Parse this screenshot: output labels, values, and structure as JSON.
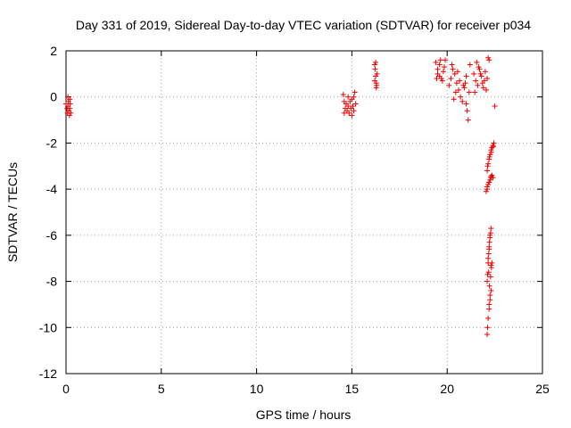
{
  "chart_data": {
    "type": "scatter",
    "title": "Day 331 of 2019, Sidereal Day-to-day VTEC variation (SDTVAR) for receiver p034",
    "xlabel": "GPS time / hours",
    "ylabel": "SDTVAR / TECUs",
    "xlim": [
      0,
      25
    ],
    "ylim": [
      -12,
      2
    ],
    "x_ticks": [
      0,
      5,
      10,
      15,
      20,
      25
    ],
    "y_ticks": [
      -12,
      -10,
      -8,
      -6,
      -4,
      -2,
      0,
      2
    ],
    "x_tick_labels": [
      "0",
      "5",
      "10",
      "15",
      "20",
      "25"
    ],
    "y_tick_labels": [
      "-12",
      "-10",
      "-8",
      "-6",
      "-4",
      "-2",
      "0",
      "2"
    ],
    "grid": true,
    "marker": "plus",
    "color": "#ee0000",
    "series": [
      {
        "x": [
          0.0,
          0.05,
          0.08,
          0.1,
          0.12,
          0.15,
          0.18,
          0.2,
          0.22,
          0.25,
          0.1,
          0.2,
          14.55,
          14.6,
          14.65,
          14.7,
          14.75,
          14.8,
          14.85,
          14.9,
          14.95,
          15.0,
          15.05,
          15.1,
          15.15,
          15.2,
          14.6,
          14.8,
          15.0,
          15.1,
          16.2,
          16.22,
          16.25,
          16.28,
          16.3,
          16.32,
          16.25,
          16.2,
          16.28,
          19.4,
          19.5,
          19.6,
          19.7,
          19.8,
          19.9,
          19.5,
          19.6,
          19.75,
          19.85,
          19.45,
          19.65,
          20.1,
          20.2,
          20.3,
          20.4,
          20.5,
          20.6,
          20.7,
          20.8,
          20.9,
          21.0,
          20.25,
          20.45,
          20.65,
          20.85,
          20.35,
          20.55,
          20.95,
          21.0,
          21.05,
          21.1,
          21.15,
          21.2,
          21.4,
          21.5,
          21.6,
          21.7,
          21.8,
          21.9,
          22.0,
          22.1,
          21.45,
          21.65,
          21.85,
          22.05,
          21.55,
          21.75,
          21.95,
          22.15,
          22.2,
          22.5,
          22.1,
          22.15,
          22.2,
          22.25,
          22.3,
          22.35,
          22.4,
          22.45,
          22.12,
          22.22,
          22.32,
          22.42,
          22.05,
          22.1,
          22.15,
          22.2,
          22.25,
          22.3,
          22.35,
          22.4,
          22.1,
          22.2,
          22.3,
          22.1,
          22.12,
          22.15,
          22.18,
          22.2,
          22.22,
          22.25,
          22.28,
          22.3,
          22.15,
          22.2,
          22.25,
          22.1,
          22.12,
          22.15,
          22.2
        ],
        "y": [
          -0.3,
          -0.5,
          -0.7,
          -0.4,
          -0.2,
          -0.6,
          -0.8,
          -0.5,
          -0.3,
          -0.7,
          0.0,
          -0.1,
          0.1,
          -0.2,
          -0.5,
          -0.3,
          -0.6,
          -0.4,
          -0.7,
          -0.2,
          -0.5,
          -0.1,
          -0.4,
          0.0,
          0.2,
          -0.3,
          -0.7,
          0.0,
          -0.8,
          -0.6,
          1.4,
          1.2,
          0.9,
          0.6,
          0.5,
          1.0,
          1.5,
          0.7,
          0.4,
          1.5,
          1.2,
          0.9,
          0.8,
          1.1,
          1.6,
          1.0,
          1.4,
          0.7,
          1.3,
          0.8,
          1.6,
          0.5,
          0.8,
          1.2,
          1.0,
          0.6,
          0.3,
          0.0,
          -0.2,
          0.4,
          0.9,
          1.4,
          0.2,
          0.7,
          0.5,
          -0.1,
          1.1,
          0.6,
          -0.3,
          -0.6,
          -1.0,
          0.2,
          1.4,
          1.0,
          0.7,
          0.5,
          1.2,
          0.9,
          0.4,
          1.1,
          0.8,
          0.2,
          1.3,
          0.6,
          0.3,
          1.5,
          1.0,
          0.7,
          1.7,
          1.6,
          -0.4,
          -3.2,
          -2.9,
          -2.7,
          -2.5,
          -2.3,
          -2.2,
          -2.1,
          -2.0,
          -3.0,
          -2.6,
          -2.4,
          -2.15,
          -4.1,
          -4.0,
          -3.8,
          -3.7,
          -3.6,
          -3.5,
          -3.4,
          -3.5,
          -3.9,
          -3.7,
          -3.45,
          -8.0,
          -7.7,
          -7.2,
          -6.8,
          -6.5,
          -6.3,
          -6.1,
          -5.9,
          -5.7,
          -7.0,
          -6.6,
          -6.0,
          -10.3,
          -10.0,
          -9.6,
          -9.2
        ],
        "x2": [
          22.25,
          22.3,
          22.2,
          22.22,
          22.28,
          22.32,
          22.18,
          22.3,
          22.25,
          22.35
        ],
        "y2": [
          -8.8,
          -8.4,
          -9.0,
          -8.2,
          -7.8,
          -7.4,
          -7.6,
          -7.3,
          -8.6,
          -7.2
        ]
      }
    ]
  }
}
